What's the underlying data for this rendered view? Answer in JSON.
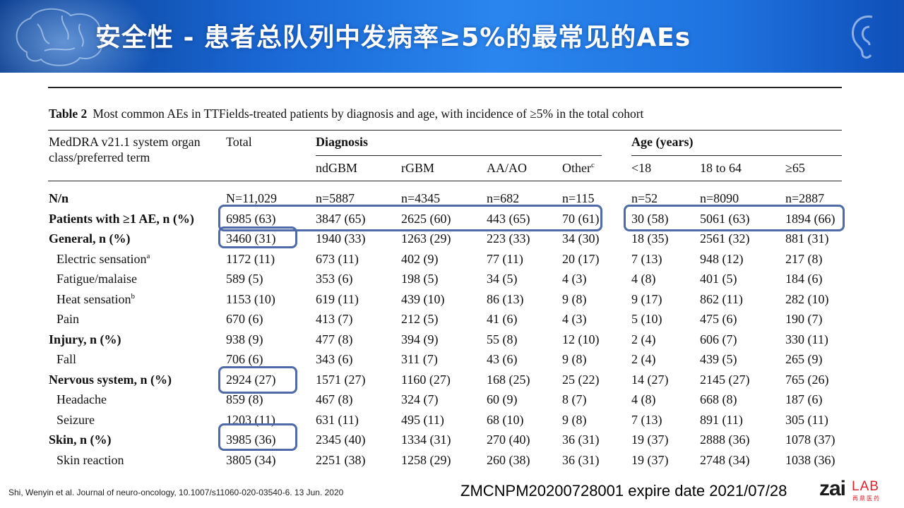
{
  "slide": {
    "title": "安全性 - 患者总队列中发病率≥5%的最常见的AEs"
  },
  "table": {
    "caption_label": "Table 2",
    "caption_text": "Most common AEs in TTFields-treated patients by diagnosis and age, with incidence of ≥5% in the total cohort",
    "header": {
      "term_line1": "MedDRA v21.1 system organ",
      "term_line2": "class/preferred term",
      "total": "Total",
      "diagnosis": "Diagnosis",
      "age": "Age (years)",
      "subcols": [
        "ndGBM",
        "rGBM",
        "AA/AO",
        "Other",
        "<18",
        "18 to 64",
        "≥65"
      ],
      "other_sup": "c"
    },
    "rows": [
      {
        "term": "N/n",
        "sup": "",
        "values": [
          "N=11,029",
          "n=5887",
          "n=4345",
          "n=682",
          "n=115",
          "n=52",
          "n=8090",
          "n=2887"
        ]
      },
      {
        "term": "Patients with ≥1 AE, n (%)",
        "sup": "",
        "values": [
          "6985 (63)",
          "3847 (65)",
          "2625 (60)",
          "443 (65)",
          "70 (61)",
          "30 (58)",
          "5061 (63)",
          "1894 (66)"
        ]
      },
      {
        "term": "General, n (%)",
        "sup": "",
        "values": [
          "3460 (31)",
          "1940 (33)",
          "1263 (29)",
          "223 (33)",
          "34 (30)",
          "18 (35)",
          "2561 (32)",
          "881 (31)"
        ]
      },
      {
        "term": "Electric sensation",
        "sup": "a",
        "values": [
          "1172 (11)",
          "673 (11)",
          "402 (9)",
          "77 (11)",
          "20 (17)",
          "7 (13)",
          "948 (12)",
          "217 (8)"
        ]
      },
      {
        "term": "Fatigue/malaise",
        "sup": "",
        "values": [
          "589 (5)",
          "353 (6)",
          "198 (5)",
          "34 (5)",
          "4 (3)",
          "4 (8)",
          "401 (5)",
          "184 (6)"
        ]
      },
      {
        "term": "Heat sensation",
        "sup": "b",
        "values": [
          "1153 (10)",
          "619 (11)",
          "439 (10)",
          "86 (13)",
          "9 (8)",
          "9 (17)",
          "862 (11)",
          "282 (10)"
        ]
      },
      {
        "term": "Pain",
        "sup": "",
        "values": [
          "670 (6)",
          "413 (7)",
          "212 (5)",
          "41 (6)",
          "4 (3)",
          "5 (10)",
          "475 (6)",
          "190 (7)"
        ]
      },
      {
        "term": "Injury, n (%)",
        "sup": "",
        "values": [
          "938 (9)",
          "477 (8)",
          "394 (9)",
          "55 (8)",
          "12 (10)",
          "2 (4)",
          "606 (7)",
          "330 (11)"
        ]
      },
      {
        "term": "Fall",
        "sup": "",
        "values": [
          "706 (6)",
          "343 (6)",
          "311 (7)",
          "43 (6)",
          "9 (8)",
          "2 (4)",
          "439 (5)",
          "265 (9)"
        ]
      },
      {
        "term": "Nervous system, n (%)",
        "sup": "",
        "values": [
          "2924 (27)",
          "1571 (27)",
          "1160 (27)",
          "168 (25)",
          "25 (22)",
          "14 (27)",
          "2145 (27)",
          "765 (26)"
        ]
      },
      {
        "term": "Headache",
        "sup": "",
        "values": [
          "859 (8)",
          "467 (8)",
          "324 (7)",
          "60 (9)",
          "8 (7)",
          "4 (8)",
          "668 (8)",
          "187 (6)"
        ]
      },
      {
        "term": "Seizure",
        "sup": "",
        "values": [
          "1203 (11)",
          "631 (11)",
          "495 (11)",
          "68 (10)",
          "9 (8)",
          "7 (13)",
          "891 (11)",
          "305 (11)"
        ]
      },
      {
        "term": "Skin, n (%)",
        "sup": "",
        "values": [
          "3985 (36)",
          "2345 (40)",
          "1334 (31)",
          "270 (40)",
          "36 (31)",
          "19 (37)",
          "2888 (36)",
          "1078 (37)"
        ]
      },
      {
        "term": "Skin reaction",
        "sup": "",
        "values": [
          "3805 (34)",
          "2251 (38)",
          "1258 (29)",
          "260 (38)",
          "36 (31)",
          "19 (37)",
          "2748 (34)",
          "1038 (36)"
        ]
      }
    ]
  },
  "footer": {
    "citation": "Shi, Wenyin et al. Journal of neuro-oncology,  10.1007/s11060-020-03540-6.  13 Jun. 2020",
    "doc_id": "ZMCNPM20200728001  expire date 2021/07/28",
    "logo_main": "zai",
    "logo_lab": "LAB",
    "logo_sub": "再鼎医药"
  },
  "colors": {
    "banner_dark": "#0a3d8f",
    "banner_light": "#2a86ef",
    "highlight_border": "#4e6aa8",
    "logo_red": "#e0202a"
  }
}
